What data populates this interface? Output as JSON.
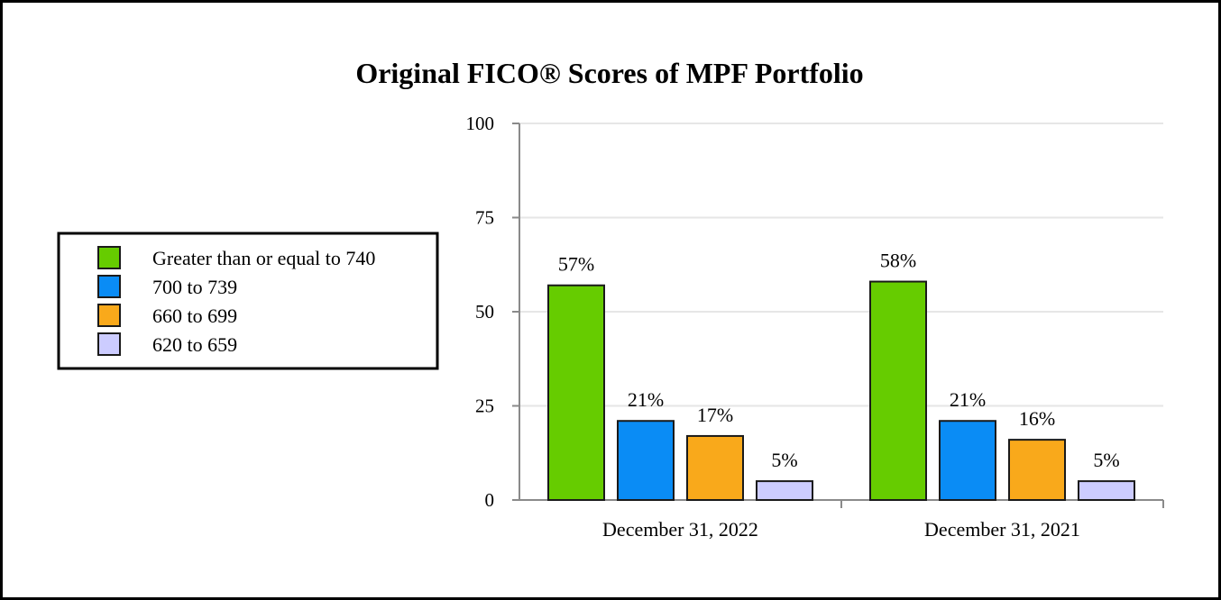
{
  "chart_data": {
    "type": "bar",
    "title": "Original FICO® Scores of MPF Portfolio",
    "xlabel": "",
    "ylabel": "",
    "categories": [
      "December 31, 2022",
      "December 31, 2021"
    ],
    "ylim": [
      0,
      100
    ],
    "yticks": [
      0,
      25,
      50,
      75,
      100
    ],
    "grid": true,
    "legend_position": "left",
    "series": [
      {
        "name": "Greater than or equal to 740",
        "color": "#66CC00",
        "values": [
          57,
          58
        ],
        "labels": [
          "57%",
          "58%"
        ]
      },
      {
        "name": "700 to 739",
        "color": "#0A8CF5",
        "values": [
          21,
          21
        ],
        "labels": [
          "21%",
          "21%"
        ]
      },
      {
        "name": "660 to 699",
        "color": "#F9A91B",
        "values": [
          17,
          16
        ],
        "labels": [
          "17%",
          "16%"
        ]
      },
      {
        "name": "620 to 659",
        "color": "#CCCCFF",
        "values": [
          5,
          5
        ],
        "labels": [
          "5%",
          "5%"
        ]
      }
    ]
  }
}
